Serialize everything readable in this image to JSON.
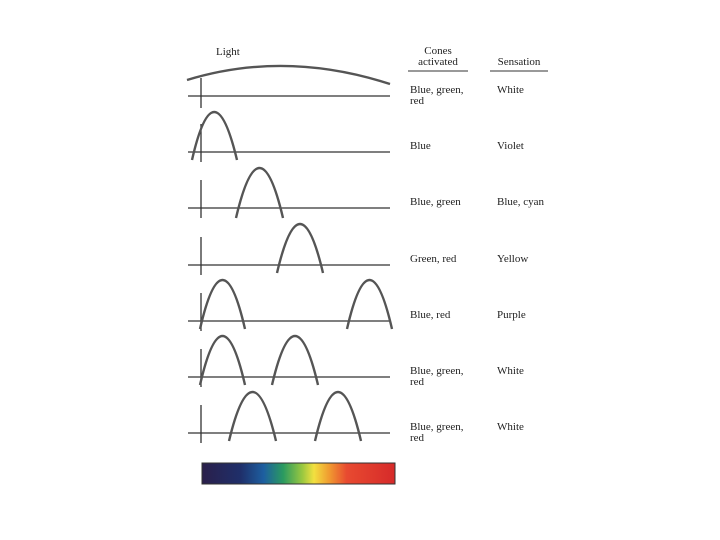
{
  "header": {
    "light": "Light",
    "cones": "Cones activated",
    "sensation": "Sensation"
  },
  "rows": [
    {
      "cones": "Blue, green, red",
      "sensation": "White"
    },
    {
      "cones": "Blue",
      "sensation": "Violet"
    },
    {
      "cones": "Blue, green",
      "sensation": "Blue, cyan"
    },
    {
      "cones": "Green, red",
      "sensation": "Yellow"
    },
    {
      "cones": "Blue, red",
      "sensation": "Purple"
    },
    {
      "cones": "Blue, green, red",
      "sensation": "White"
    },
    {
      "cones": "Blue, green, red",
      "sensation": "White"
    }
  ]
}
